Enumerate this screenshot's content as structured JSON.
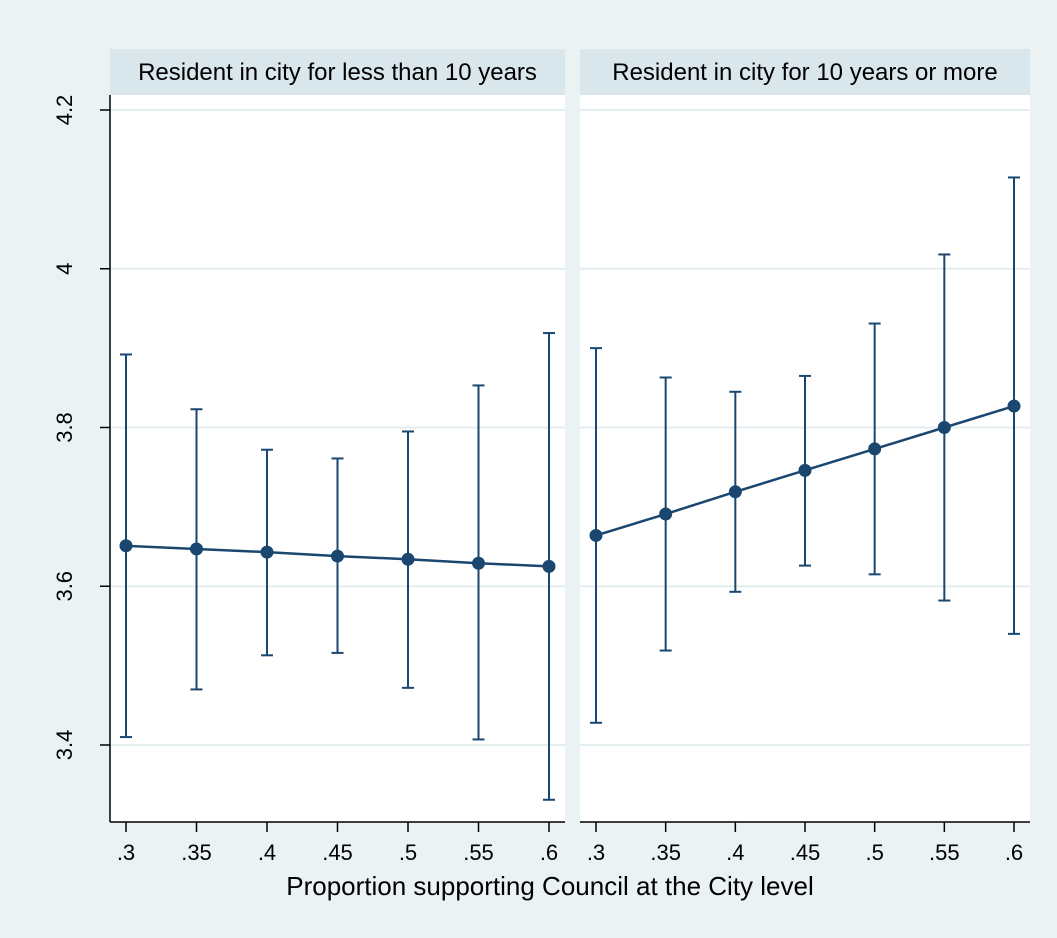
{
  "chart_data": {
    "type": "line",
    "xlabel": "Proportion supporting Council at the City level",
    "ylabel": "",
    "x": [
      0.3,
      0.35,
      0.4,
      0.45,
      0.5,
      0.55,
      0.6
    ],
    "x_tick_labels": [
      ".3",
      ".35",
      ".4",
      ".45",
      ".5",
      ".55",
      ".6"
    ],
    "y_ticks": [
      3.4,
      3.6,
      3.8,
      4,
      4.2
    ],
    "y_tick_labels": [
      "3.4",
      "3.6",
      "3.8",
      "4",
      "4.2"
    ],
    "ylim": [
      3.33,
      4.22
    ],
    "grid": true,
    "panels": [
      {
        "title": "Resident in city  for less than 10 years",
        "estimates": [
          3.651,
          3.647,
          3.643,
          3.638,
          3.634,
          3.629,
          3.625
        ],
        "ci_upper": [
          3.892,
          3.823,
          3.772,
          3.761,
          3.795,
          3.853,
          3.919
        ],
        "ci_lower": [
          3.41,
          3.47,
          3.513,
          3.516,
          3.472,
          3.407,
          3.331
        ]
      },
      {
        "title": "Resident in city for 10 years or more",
        "estimates": [
          3.664,
          3.691,
          3.719,
          3.746,
          3.773,
          3.8,
          3.827
        ],
        "ci_upper": [
          3.9,
          3.863,
          3.845,
          3.865,
          3.931,
          4.018,
          4.115
        ],
        "ci_lower": [
          3.428,
          3.519,
          3.593,
          3.626,
          3.615,
          3.582,
          3.54
        ]
      }
    ],
    "colors": {
      "outer_background": "#eaf2f3",
      "plot_background": "#ffffff",
      "strip_background": "#d9e6eb",
      "series": "#1a476f",
      "grid": "#e4eef0",
      "axis": "#000000"
    }
  }
}
